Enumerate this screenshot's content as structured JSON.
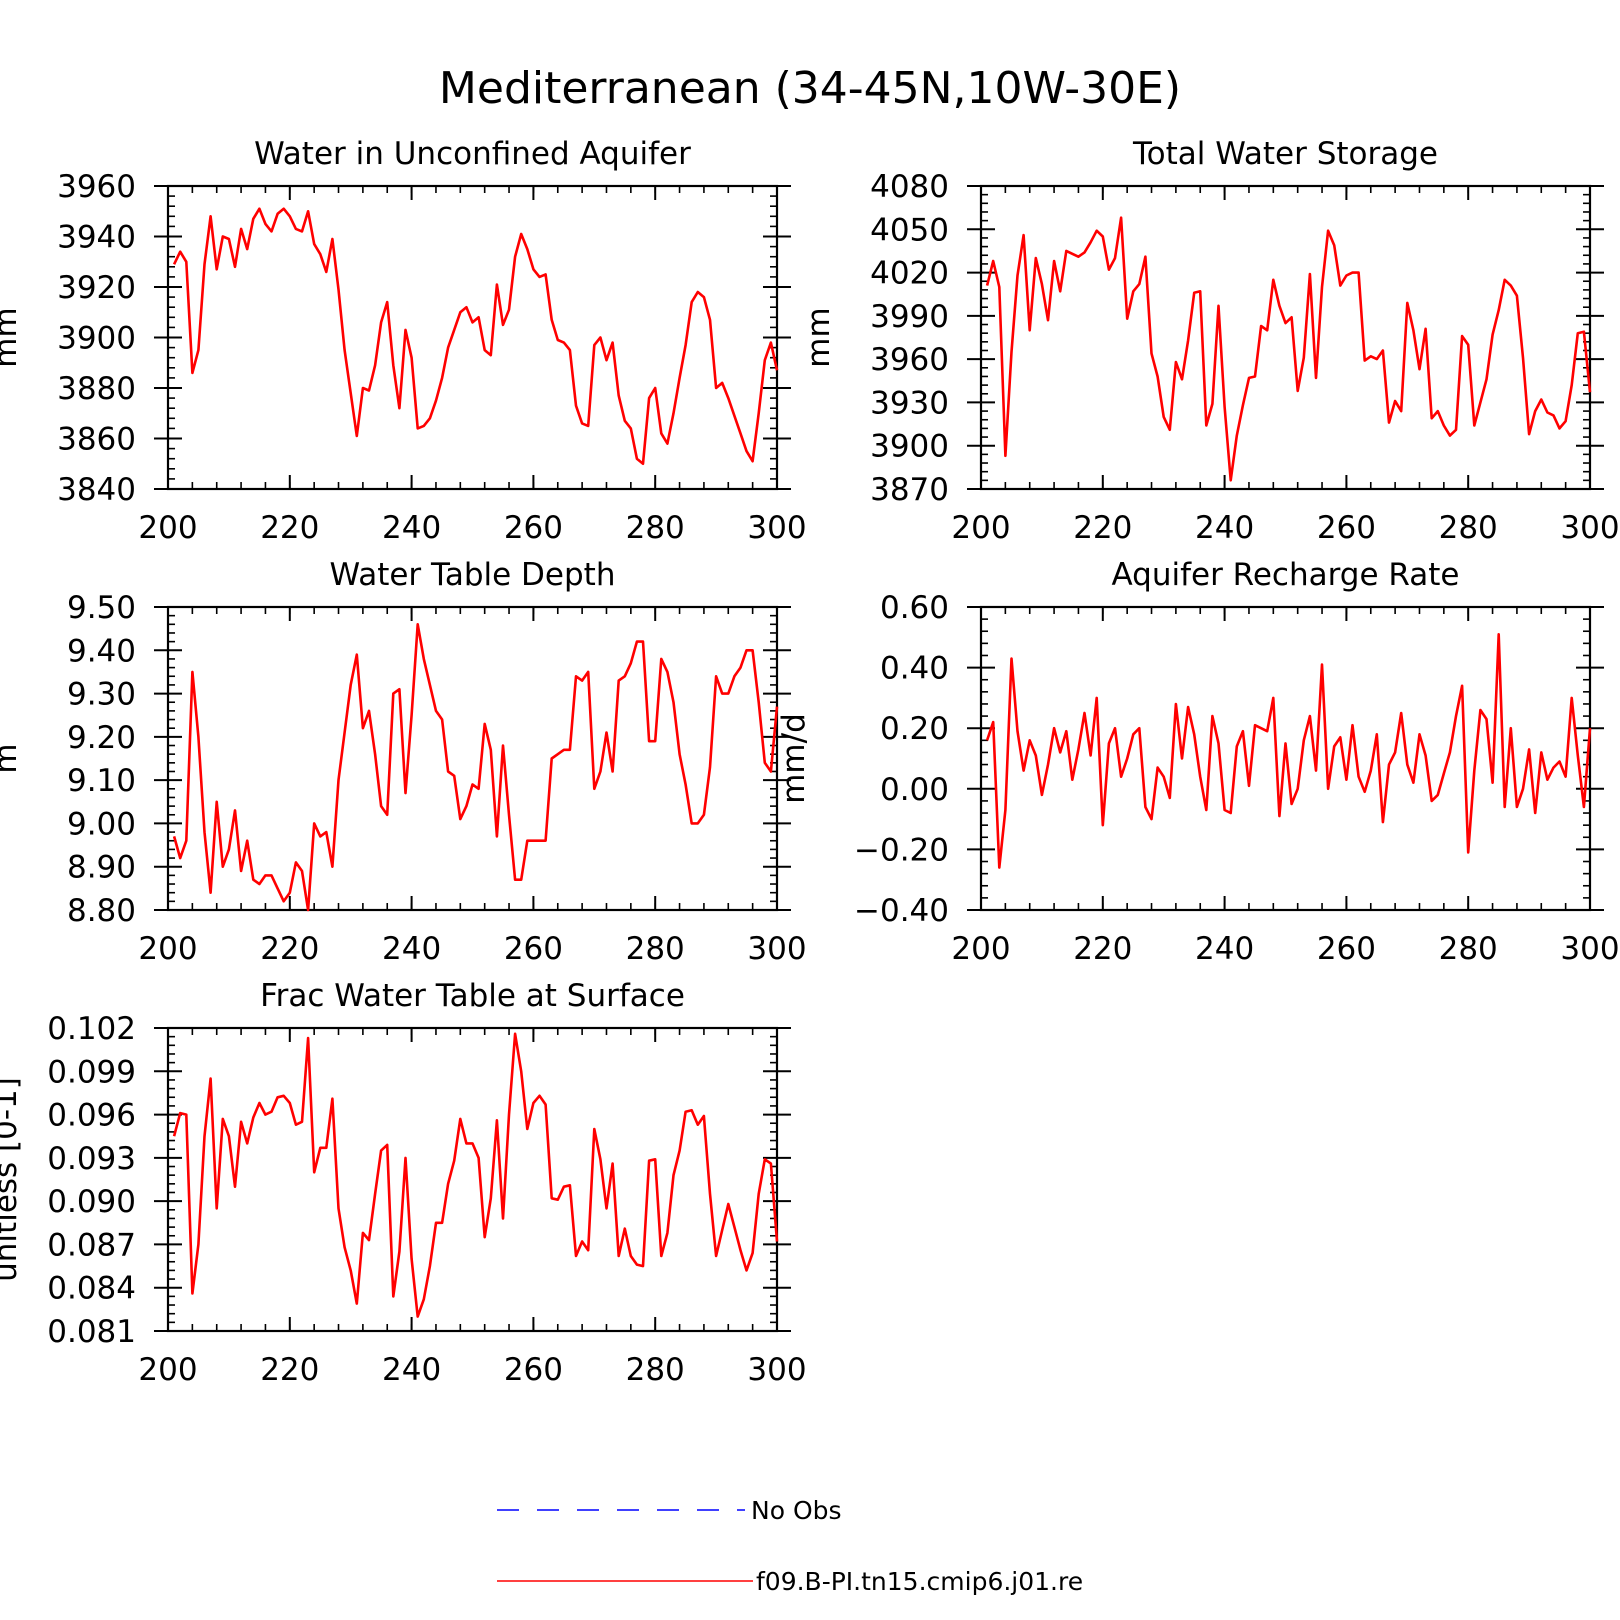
{
  "figure": {
    "title": "Mediterranean (34-45N,10W-30E)"
  },
  "legend": {
    "items": [
      {
        "label": "No Obs",
        "color": "#0000ff",
        "style": "dashed"
      },
      {
        "label": "f09.B-PI.tn15.cmip6.j01.re",
        "color": "#ff0000",
        "style": "solid"
      }
    ]
  },
  "chart_data": [
    {
      "type": "line",
      "title": "Water in Unconfined Aquifer",
      "xlabel": "",
      "ylabel": "mm",
      "xlim": [
        200,
        300
      ],
      "ylim": [
        3840,
        3960
      ],
      "xticks": [
        200,
        220,
        240,
        260,
        280,
        300
      ],
      "xtick_labels": [
        "200",
        "220",
        "240",
        "260",
        "280",
        "300"
      ],
      "yticks": [
        3840,
        3860,
        3880,
        3900,
        3920,
        3940,
        3960
      ],
      "ytick_labels": [
        "3840",
        "3860",
        "3880",
        "3900",
        "3920",
        "3940",
        "3960"
      ],
      "color": "#ff0000",
      "x": [
        201,
        202,
        203,
        204,
        205,
        206,
        207,
        208,
        209,
        210,
        211,
        212,
        213,
        214,
        215,
        216,
        217,
        218,
        219,
        220,
        221,
        222,
        223,
        224,
        225,
        226,
        227,
        228,
        229,
        230,
        231,
        232,
        233,
        234,
        235,
        236,
        237,
        238,
        239,
        240,
        241,
        242,
        243,
        244,
        245,
        246,
        247,
        248,
        249,
        250,
        251,
        252,
        253,
        254,
        255,
        256,
        257,
        258,
        259,
        260,
        261,
        262,
        263,
        264,
        265,
        266,
        267,
        268,
        269,
        270,
        271,
        272,
        273,
        274,
        275,
        276,
        277,
        278,
        279,
        280,
        281,
        282,
        283,
        284,
        285,
        286,
        287,
        288,
        289,
        290,
        291,
        292,
        293,
        294,
        295,
        296,
        297,
        298,
        299,
        300
      ],
      "y": [
        3929,
        3934,
        3930,
        3886,
        3895,
        3929,
        3948,
        3927,
        3940,
        3939,
        3928,
        3943,
        3935,
        3947,
        3951,
        3945,
        3942,
        3949,
        3951,
        3948,
        3943,
        3942,
        3950,
        3937,
        3933,
        3926,
        3939,
        3919,
        3895,
        3878,
        3861,
        3880,
        3879,
        3889,
        3906,
        3914,
        3889,
        3872,
        3903,
        3892,
        3864,
        3865,
        3868,
        3875,
        3884,
        3896,
        3903,
        3910,
        3912,
        3906,
        3908,
        3895,
        3893,
        3921,
        3905,
        3911,
        3932,
        3941,
        3935,
        3927,
        3924,
        3925,
        3907,
        3899,
        3898,
        3895,
        3873,
        3866,
        3865,
        3897,
        3900,
        3891,
        3898,
        3877,
        3867,
        3864,
        3852,
        3850,
        3876,
        3880,
        3862,
        3858,
        3870,
        3884,
        3897,
        3914,
        3918,
        3916,
        3907,
        3880,
        3882,
        3876,
        3869,
        3862,
        3855,
        3851,
        3870,
        3891,
        3898,
        3887
      ]
    },
    {
      "type": "line",
      "title": "Total Water Storage",
      "xlabel": "",
      "ylabel": "mm",
      "xlim": [
        200,
        300
      ],
      "ylim": [
        3870,
        4080
      ],
      "xticks": [
        200,
        220,
        240,
        260,
        280,
        300
      ],
      "xtick_labels": [
        "200",
        "220",
        "240",
        "260",
        "280",
        "300"
      ],
      "yticks": [
        3870,
        3900,
        3930,
        3960,
        3990,
        4020,
        4050,
        4080
      ],
      "ytick_labels": [
        "3870",
        "3900",
        "3930",
        "3960",
        "3990",
        "4020",
        "4050",
        "4080"
      ],
      "color": "#ff0000",
      "x": [
        201,
        202,
        203,
        204,
        205,
        206,
        207,
        208,
        209,
        210,
        211,
        212,
        213,
        214,
        215,
        216,
        217,
        218,
        219,
        220,
        221,
        222,
        223,
        224,
        225,
        226,
        227,
        228,
        229,
        230,
        231,
        232,
        233,
        234,
        235,
        236,
        237,
        238,
        239,
        240,
        241,
        242,
        243,
        244,
        245,
        246,
        247,
        248,
        249,
        250,
        251,
        252,
        253,
        254,
        255,
        256,
        257,
        258,
        259,
        260,
        261,
        262,
        263,
        264,
        265,
        266,
        267,
        268,
        269,
        270,
        271,
        272,
        273,
        274,
        275,
        276,
        277,
        278,
        279,
        280,
        281,
        282,
        283,
        284,
        285,
        286,
        287,
        288,
        289,
        290,
        291,
        292,
        293,
        294,
        295,
        296,
        297,
        298,
        299,
        300
      ],
      "y": [
        4011,
        4028,
        4010,
        3893,
        3965,
        4018,
        4046,
        3980,
        4030,
        4012,
        3987,
        4028,
        4007,
        4035,
        4033,
        4031,
        4034,
        4041,
        4049,
        4045,
        4022,
        4030,
        4058,
        3988,
        4007,
        4012,
        4031,
        3964,
        3948,
        3920,
        3911,
        3958,
        3946,
        3973,
        4006,
        4007,
        3914,
        3929,
        3997,
        3927,
        3876,
        3907,
        3928,
        3947,
        3948,
        3983,
        3980,
        4015,
        3997,
        3985,
        3989,
        3938,
        3961,
        4019,
        3947,
        4010,
        4049,
        4039,
        4011,
        4018,
        4020,
        4020,
        3959,
        3962,
        3960,
        3966,
        3916,
        3931,
        3924,
        3999,
        3980,
        3953,
        3981,
        3919,
        3924,
        3914,
        3907,
        3911,
        3976,
        3970,
        3914,
        3930,
        3946,
        3977,
        3994,
        4015,
        4011,
        4004,
        3961,
        3908,
        3924,
        3932,
        3923,
        3921,
        3912,
        3917,
        3942,
        3978,
        3979,
        3937
      ]
    },
    {
      "type": "line",
      "title": "Water Table Depth",
      "xlabel": "",
      "ylabel": "m",
      "xlim": [
        200,
        300
      ],
      "ylim": [
        8.8,
        9.5
      ],
      "xticks": [
        200,
        220,
        240,
        260,
        280,
        300
      ],
      "xtick_labels": [
        "200",
        "220",
        "240",
        "260",
        "280",
        "300"
      ],
      "yticks": [
        8.8,
        8.9,
        9.0,
        9.1,
        9.2,
        9.3,
        9.4,
        9.5
      ],
      "ytick_labels": [
        "8.80",
        "8.90",
        "9.00",
        "9.10",
        "9.20",
        "9.30",
        "9.40",
        "9.50"
      ],
      "color": "#ff0000",
      "x": [
        201,
        202,
        203,
        204,
        205,
        206,
        207,
        208,
        209,
        210,
        211,
        212,
        213,
        214,
        215,
        216,
        217,
        218,
        219,
        220,
        221,
        222,
        223,
        224,
        225,
        226,
        227,
        228,
        229,
        230,
        231,
        232,
        233,
        234,
        235,
        236,
        237,
        238,
        239,
        240,
        241,
        242,
        243,
        244,
        245,
        246,
        247,
        248,
        249,
        250,
        251,
        252,
        253,
        254,
        255,
        256,
        257,
        258,
        259,
        260,
        261,
        262,
        263,
        264,
        265,
        266,
        267,
        268,
        269,
        270,
        271,
        272,
        273,
        274,
        275,
        276,
        277,
        278,
        279,
        280,
        281,
        282,
        283,
        284,
        285,
        286,
        287,
        288,
        289,
        290,
        291,
        292,
        293,
        294,
        295,
        296,
        297,
        298,
        299,
        300
      ],
      "y": [
        8.97,
        8.92,
        8.96,
        9.35,
        9.2,
        8.98,
        8.84,
        9.05,
        8.9,
        8.94,
        9.03,
        8.89,
        8.96,
        8.87,
        8.86,
        8.88,
        8.88,
        8.85,
        8.82,
        8.84,
        8.91,
        8.89,
        8.8,
        9.0,
        8.97,
        8.98,
        8.9,
        9.1,
        9.21,
        9.32,
        9.39,
        9.22,
        9.26,
        9.16,
        9.04,
        9.02,
        9.3,
        9.31,
        9.07,
        9.25,
        9.46,
        9.38,
        9.32,
        9.26,
        9.24,
        9.12,
        9.11,
        9.01,
        9.04,
        9.09,
        9.08,
        9.23,
        9.17,
        8.97,
        9.18,
        9.02,
        8.87,
        8.87,
        8.96,
        8.96,
        8.96,
        8.96,
        9.15,
        9.16,
        9.17,
        9.17,
        9.34,
        9.33,
        9.35,
        9.08,
        9.12,
        9.21,
        9.12,
        9.33,
        9.34,
        9.37,
        9.42,
        9.42,
        9.19,
        9.19,
        9.38,
        9.35,
        9.28,
        9.16,
        9.09,
        9.0,
        9.0,
        9.02,
        9.13,
        9.34,
        9.3,
        9.3,
        9.34,
        9.36,
        9.4,
        9.4,
        9.28,
        9.14,
        9.12,
        9.27
      ]
    },
    {
      "type": "line",
      "title": "Aquifer Recharge Rate",
      "xlabel": "",
      "ylabel": "mm/d",
      "xlim": [
        200,
        300
      ],
      "ylim": [
        -0.4,
        0.6
      ],
      "xticks": [
        200,
        220,
        240,
        260,
        280,
        300
      ],
      "xtick_labels": [
        "200",
        "220",
        "240",
        "260",
        "280",
        "300"
      ],
      "yticks": [
        -0.4,
        -0.2,
        0.0,
        0.2,
        0.4,
        0.6
      ],
      "ytick_labels": [
        "-0.40",
        "-0.20",
        "0.00",
        "0.20",
        "0.40",
        "0.60"
      ],
      "color": "#ff0000",
      "x": [
        201,
        202,
        203,
        204,
        205,
        206,
        207,
        208,
        209,
        210,
        211,
        212,
        213,
        214,
        215,
        216,
        217,
        218,
        219,
        220,
        221,
        222,
        223,
        224,
        225,
        226,
        227,
        228,
        229,
        230,
        231,
        232,
        233,
        234,
        235,
        236,
        237,
        238,
        239,
        240,
        241,
        242,
        243,
        244,
        245,
        246,
        247,
        248,
        249,
        250,
        251,
        252,
        253,
        254,
        255,
        256,
        257,
        258,
        259,
        260,
        261,
        262,
        263,
        264,
        265,
        266,
        267,
        268,
        269,
        270,
        271,
        272,
        273,
        274,
        275,
        276,
        277,
        278,
        279,
        280,
        281,
        282,
        283,
        284,
        285,
        286,
        287,
        288,
        289,
        290,
        291,
        292,
        293,
        294,
        295,
        296,
        297,
        298,
        299,
        300
      ],
      "y": [
        0.16,
        0.22,
        -0.26,
        -0.07,
        0.43,
        0.19,
        0.06,
        0.16,
        0.11,
        -0.02,
        0.08,
        0.2,
        0.12,
        0.19,
        0.03,
        0.13,
        0.25,
        0.11,
        0.3,
        -0.12,
        0.15,
        0.2,
        0.04,
        0.1,
        0.18,
        0.2,
        -0.06,
        -0.1,
        0.07,
        0.04,
        -0.03,
        0.28,
        0.1,
        0.27,
        0.18,
        0.04,
        -0.07,
        0.24,
        0.15,
        -0.07,
        -0.08,
        0.14,
        0.19,
        0.01,
        0.21,
        0.2,
        0.19,
        0.3,
        -0.09,
        0.15,
        -0.05,
        0.0,
        0.16,
        0.24,
        0.06,
        0.41,
        0.0,
        0.14,
        0.17,
        0.03,
        0.21,
        0.04,
        -0.01,
        0.06,
        0.18,
        -0.11,
        0.08,
        0.12,
        0.25,
        0.08,
        0.02,
        0.18,
        0.11,
        -0.04,
        -0.02,
        0.05,
        0.12,
        0.24,
        0.34,
        -0.21,
        0.06,
        0.26,
        0.23,
        0.02,
        0.51,
        -0.06,
        0.2,
        -0.06,
        0.0,
        0.13,
        -0.08,
        0.12,
        0.03,
        0.07,
        0.09,
        0.04,
        0.3,
        0.11,
        -0.06,
        0.2
      ]
    },
    {
      "type": "line",
      "title": "Frac Water Table at Surface",
      "xlabel": "",
      "ylabel": "unitless [0-1]",
      "xlim": [
        200,
        300
      ],
      "ylim": [
        0.081,
        0.102
      ],
      "xticks": [
        200,
        220,
        240,
        260,
        280,
        300
      ],
      "xtick_labels": [
        "200",
        "220",
        "240",
        "260",
        "280",
        "300"
      ],
      "yticks": [
        0.081,
        0.084,
        0.087,
        0.09,
        0.093,
        0.096,
        0.099,
        0.102
      ],
      "ytick_labels": [
        "0.081",
        "0.084",
        "0.087",
        "0.090",
        "0.093",
        "0.096",
        "0.099",
        "0.102"
      ],
      "color": "#ff0000",
      "x": [
        201,
        202,
        203,
        204,
        205,
        206,
        207,
        208,
        209,
        210,
        211,
        212,
        213,
        214,
        215,
        216,
        217,
        218,
        219,
        220,
        221,
        222,
        223,
        224,
        225,
        226,
        227,
        228,
        229,
        230,
        231,
        232,
        233,
        234,
        235,
        236,
        237,
        238,
        239,
        240,
        241,
        242,
        243,
        244,
        245,
        246,
        247,
        248,
        249,
        250,
        251,
        252,
        253,
        254,
        255,
        256,
        257,
        258,
        259,
        260,
        261,
        262,
        263,
        264,
        265,
        266,
        267,
        268,
        269,
        270,
        271,
        272,
        273,
        274,
        275,
        276,
        277,
        278,
        279,
        280,
        281,
        282,
        283,
        284,
        285,
        286,
        287,
        288,
        289,
        290,
        291,
        292,
        293,
        294,
        295,
        296,
        297,
        298,
        299,
        300
      ],
      "y": [
        0.0945,
        0.0961,
        0.096,
        0.0836,
        0.087,
        0.0945,
        0.0985,
        0.0895,
        0.0957,
        0.0945,
        0.091,
        0.0955,
        0.094,
        0.0958,
        0.0968,
        0.096,
        0.0962,
        0.0972,
        0.0973,
        0.0968,
        0.0953,
        0.0955,
        0.1013,
        0.092,
        0.0937,
        0.0937,
        0.0971,
        0.0895,
        0.0868,
        0.0852,
        0.0829,
        0.0878,
        0.0873,
        0.0905,
        0.0935,
        0.0939,
        0.0834,
        0.0865,
        0.093,
        0.086,
        0.082,
        0.0832,
        0.0855,
        0.0885,
        0.0885,
        0.0912,
        0.0928,
        0.0957,
        0.094,
        0.094,
        0.093,
        0.0875,
        0.0902,
        0.0956,
        0.0888,
        0.096,
        0.1016,
        0.099,
        0.095,
        0.0968,
        0.0973,
        0.0967,
        0.0902,
        0.0901,
        0.091,
        0.0911,
        0.0862,
        0.0872,
        0.0866,
        0.095,
        0.0929,
        0.0895,
        0.0926,
        0.0862,
        0.0881,
        0.0862,
        0.0856,
        0.0855,
        0.0928,
        0.0929,
        0.0862,
        0.0878,
        0.0918,
        0.0935,
        0.0962,
        0.0963,
        0.0953,
        0.0959,
        0.0905,
        0.0862,
        0.088,
        0.0898,
        0.0882,
        0.0866,
        0.0852,
        0.0864,
        0.0905,
        0.0929,
        0.0926,
        0.0872
      ]
    }
  ]
}
